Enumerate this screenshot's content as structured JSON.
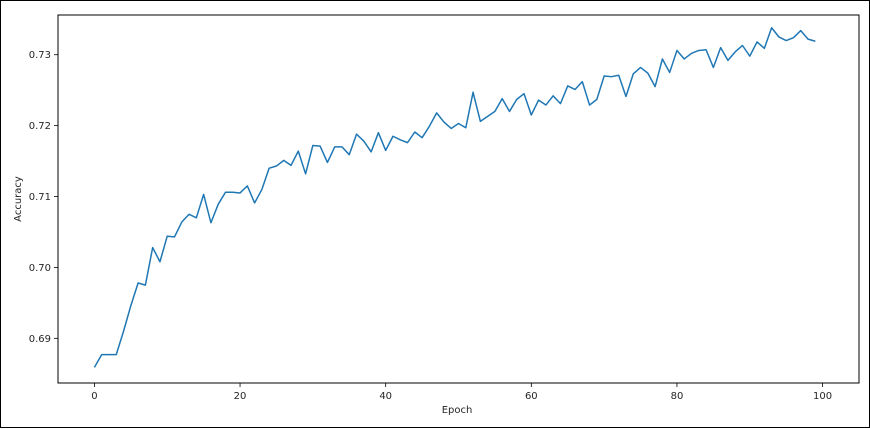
{
  "chart_data": {
    "type": "line",
    "title": "",
    "xlabel": "Epoch",
    "ylabel": "Accuracy",
    "xlim": [
      -5,
      105
    ],
    "ylim": [
      0.6837,
      0.7356
    ],
    "grid": false,
    "line_color": "#1f77b4",
    "x_ticks": [
      0,
      20,
      40,
      60,
      80,
      100
    ],
    "x_tick_labels": [
      "0",
      "20",
      "40",
      "60",
      "80",
      "100"
    ],
    "y_ticks": [
      0.69,
      0.7,
      0.71,
      0.72,
      0.73
    ],
    "y_tick_labels": [
      "0.69",
      "0.70",
      "0.71",
      "0.72",
      "0.73"
    ],
    "series": [
      {
        "x": [
          0,
          1,
          2,
          3,
          4,
          5,
          6,
          7,
          8,
          9,
          10,
          11,
          12,
          13,
          14,
          15,
          16,
          17,
          18,
          19,
          20,
          21,
          22,
          23,
          24,
          25,
          26,
          27,
          28,
          29,
          30,
          31,
          32,
          33,
          34,
          35,
          36,
          37,
          38,
          39,
          40,
          41,
          42,
          43,
          44,
          45,
          46,
          47,
          48,
          49,
          50,
          51,
          52,
          53,
          54,
          55,
          56,
          57,
          58,
          59,
          60,
          61,
          62,
          63,
          64,
          65,
          66,
          67,
          68,
          69,
          70,
          71,
          72,
          73,
          74,
          75,
          76,
          77,
          78,
          79,
          80,
          81,
          82,
          83,
          84,
          85,
          86,
          87,
          88,
          89,
          90,
          91,
          92,
          93,
          94,
          95,
          96,
          97,
          98,
          99
        ],
        "values": [
          0.6859,
          0.6877,
          0.6877,
          0.6877,
          0.691,
          0.6946,
          0.6978,
          0.6975,
          0.7028,
          0.7008,
          0.7044,
          0.7043,
          0.7064,
          0.7075,
          0.707,
          0.7103,
          0.7063,
          0.7089,
          0.7106,
          0.7106,
          0.7105,
          0.7115,
          0.7091,
          0.711,
          0.714,
          0.7143,
          0.7151,
          0.7144,
          0.7164,
          0.7132,
          0.7172,
          0.7171,
          0.7148,
          0.717,
          0.717,
          0.7159,
          0.7188,
          0.7178,
          0.7163,
          0.719,
          0.7165,
          0.7185,
          0.718,
          0.7176,
          0.7191,
          0.7183,
          0.7199,
          0.7218,
          0.7205,
          0.7196,
          0.7203,
          0.7197,
          0.7247,
          0.7206,
          0.7213,
          0.722,
          0.7238,
          0.722,
          0.7237,
          0.7245,
          0.7215,
          0.7236,
          0.7229,
          0.7242,
          0.7231,
          0.7256,
          0.7251,
          0.7262,
          0.7229,
          0.7237,
          0.727,
          0.7269,
          0.7271,
          0.7241,
          0.7273,
          0.7282,
          0.7274,
          0.7255,
          0.7294,
          0.7275,
          0.7306,
          0.7294,
          0.7302,
          0.7306,
          0.7307,
          0.7282,
          0.731,
          0.7292,
          0.7304,
          0.7313,
          0.7298,
          0.7318,
          0.7309,
          0.7338,
          0.7325,
          0.732,
          0.7324,
          0.7334,
          0.7322,
          0.7319
        ]
      }
    ]
  }
}
